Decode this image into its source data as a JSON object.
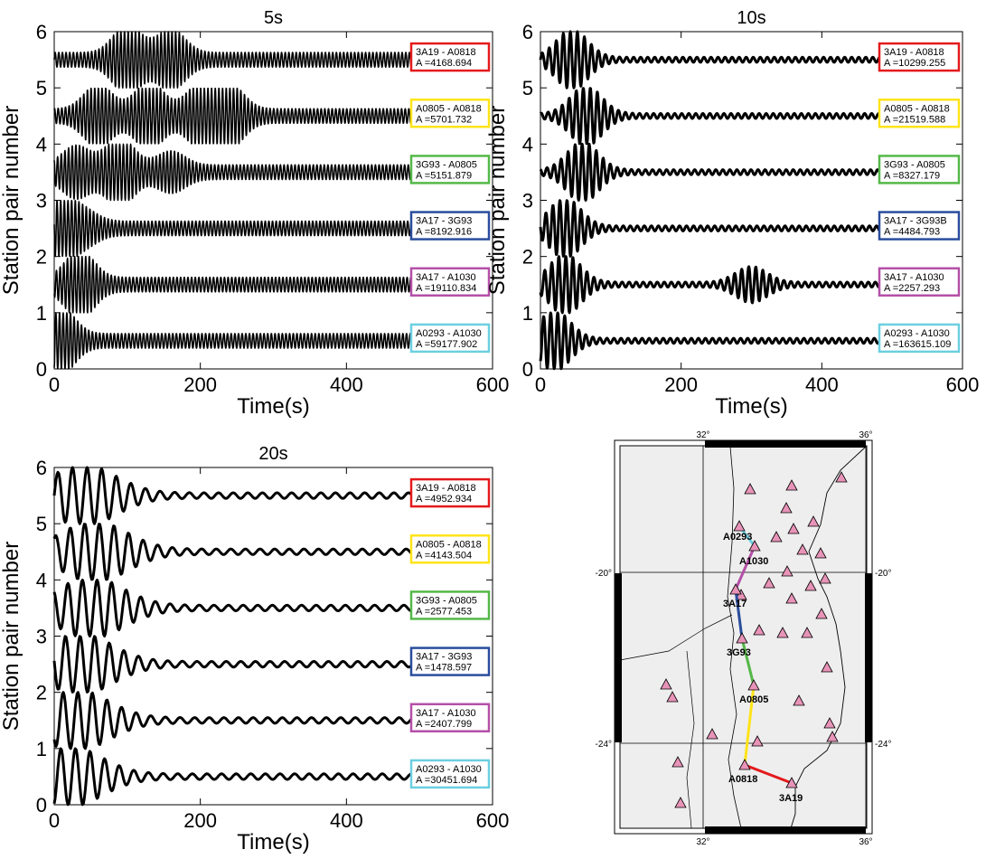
{
  "chart_data": [
    {
      "type": "line",
      "title": "5s",
      "xlabel": "Time(s)",
      "ylabel": "Station pair number",
      "xlim": [
        0,
        600
      ],
      "ylim": [
        0,
        6
      ],
      "xticks": [
        "0",
        "200",
        "400",
        "600"
      ],
      "yticks": [
        "0",
        "1",
        "2",
        "3",
        "4",
        "5",
        "6"
      ],
      "series": [
        {
          "label": "3A19 - A0818",
          "amp": "A =4168.694",
          "color": "#e41a1c",
          "offset": 5.5,
          "period": 5,
          "peaks": [
            [
              100,
              0.5
            ],
            [
              160,
              0.42
            ]
          ]
        },
        {
          "label": "A0805 - A0818",
          "amp": "A =5701.732",
          "color": "#ffe419",
          "offset": 4.5,
          "period": 5,
          "peaks": [
            [
              60,
              0.45
            ],
            [
              130,
              0.5
            ],
            [
              200,
              0.45
            ],
            [
              240,
              0.45
            ]
          ]
        },
        {
          "label": "3G93 - A0805",
          "amp": "A =5151.879",
          "color": "#55b848",
          "offset": 3.5,
          "period": 5,
          "peaks": [
            [
              30,
              0.35
            ],
            [
              90,
              0.5
            ],
            [
              160,
              0.25
            ]
          ]
        },
        {
          "label": "3A17 - 3G93",
          "amp": "A =8192.916",
          "color": "#2a4d9d",
          "offset": 2.5,
          "period": 5,
          "peaks": [
            [
              5,
              0.5
            ],
            [
              40,
              0.2
            ]
          ]
        },
        {
          "label": "3A17 - A1030",
          "amp": "A =19110.834",
          "color": "#b450a8",
          "offset": 1.5,
          "period": 5,
          "peaks": [
            [
              35,
              0.5
            ]
          ]
        },
        {
          "label": "A0293 - A1030",
          "amp": "A =59177.902",
          "color": "#6ccfe0",
          "offset": 0.5,
          "period": 5,
          "peaks": [
            [
              8,
              0.5
            ]
          ]
        }
      ]
    },
    {
      "type": "line",
      "title": "10s",
      "xlabel": "Time(s)",
      "ylabel": "Station pair number",
      "xlim": [
        0,
        600
      ],
      "ylim": [
        0,
        6
      ],
      "xticks": [
        "0",
        "200",
        "400",
        "600"
      ],
      "yticks": [
        "0",
        "1",
        "2",
        "3",
        "4",
        "5",
        "6"
      ],
      "series": [
        {
          "label": "3A19 - A0818",
          "amp": "A =10299.255",
          "color": "#e41a1c",
          "offset": 5.5,
          "period": 10,
          "peaks": [
            [
              45,
              0.5
            ]
          ]
        },
        {
          "label": "A0805 - A0818",
          "amp": "A =21519.588",
          "color": "#ffe419",
          "offset": 4.5,
          "period": 10,
          "peaks": [
            [
              65,
              0.5
            ]
          ]
        },
        {
          "label": "3G93 - A0805",
          "amp": "A =8327.179",
          "color": "#55b848",
          "offset": 3.5,
          "period": 10,
          "peaks": [
            [
              60,
              0.5
            ]
          ]
        },
        {
          "label": "3A17 - 3G93B",
          "amp": "A =4484.793",
          "color": "#2a4d9d",
          "offset": 2.5,
          "period": 10,
          "peaks": [
            [
              35,
              0.5
            ]
          ]
        },
        {
          "label": "3A17 - A1030",
          "amp": "A =2257.293",
          "color": "#b450a8",
          "offset": 1.5,
          "period": 10,
          "peaks": [
            [
              35,
              0.5
            ],
            [
              300,
              0.28
            ]
          ]
        },
        {
          "label": "A0293 - A1030",
          "amp": "A =163615.109",
          "color": "#6ccfe0",
          "offset": 0.5,
          "period": 10,
          "peaks": [
            [
              20,
              0.5
            ]
          ]
        }
      ]
    },
    {
      "type": "line",
      "title": "20s",
      "xlabel": "Time(s)",
      "ylabel": "Station pair number",
      "xlim": [
        0,
        600
      ],
      "ylim": [
        0,
        6
      ],
      "xticks": [
        "0",
        "200",
        "400",
        "600"
      ],
      "yticks": [
        "0",
        "1",
        "2",
        "3",
        "4",
        "5",
        "6"
      ],
      "series": [
        {
          "label": "3A19 - A0818",
          "amp": "A =4952.934",
          "color": "#e41a1c",
          "offset": 5.5,
          "period": 20,
          "peaks": [
            [
              40,
              0.5
            ]
          ]
        },
        {
          "label": "A0805 - A0818",
          "amp": "A =4143.504",
          "color": "#ffe419",
          "offset": 4.5,
          "period": 20,
          "peaks": [
            [
              55,
              0.5
            ]
          ]
        },
        {
          "label": "3G93 - A0805",
          "amp": "A =2577.453",
          "color": "#55b848",
          "offset": 3.5,
          "period": 20,
          "peaks": [
            [
              50,
              0.5
            ]
          ]
        },
        {
          "label": "3A17 - 3G93",
          "amp": "A =1478.597",
          "color": "#2a4d9d",
          "offset": 2.5,
          "period": 20,
          "peaks": [
            [
              35,
              0.5
            ]
          ]
        },
        {
          "label": "3A17 - A1030",
          "amp": "A =2407.799",
          "color": "#b450a8",
          "offset": 1.5,
          "period": 20,
          "peaks": [
            [
              30,
              0.5
            ]
          ]
        },
        {
          "label": "A0293 - A1030",
          "amp": "A =30451.694",
          "color": "#6ccfe0",
          "offset": 0.5,
          "period": 20,
          "peaks": [
            [
              20,
              0.5
            ]
          ]
        }
      ]
    }
  ],
  "map": {
    "lon_ticks": [
      "32°",
      "36°"
    ],
    "lat_ticks": [
      "-20°",
      "-24°"
    ],
    "stations": [
      {
        "name": "A0293",
        "label": "A0293"
      },
      {
        "name": "A1030",
        "label": "A1030"
      },
      {
        "name": "3A17",
        "label": "3A17"
      },
      {
        "name": "3G93",
        "label": "3G93"
      },
      {
        "name": "A0805",
        "label": "A0805"
      },
      {
        "name": "A0818",
        "label": "A0818"
      },
      {
        "name": "3A19",
        "label": "3A19"
      }
    ],
    "paths": [
      {
        "from": "A0293",
        "to": "A1030",
        "color": "#6ccfe0"
      },
      {
        "from": "A1030",
        "to": "3A17",
        "color": "#b450a8"
      },
      {
        "from": "3A17",
        "to": "3G93",
        "color": "#2a4d9d"
      },
      {
        "from": "3G93",
        "to": "A0805",
        "color": "#55b848"
      },
      {
        "from": "A0805",
        "to": "A0818",
        "color": "#ffe419"
      },
      {
        "from": "A0818",
        "to": "3A19",
        "color": "#e41a1c"
      }
    ],
    "triangle_color": "#e893b8"
  }
}
